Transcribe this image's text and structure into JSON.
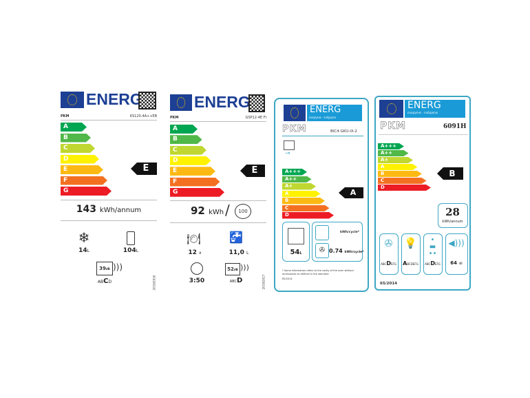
{
  "energy_word": "ENERG",
  "labels": [
    {
      "brand": "PKM",
      "model": "KS120.4A++EB",
      "scale": [
        "A",
        "B",
        "C",
        "D",
        "E",
        "F",
        "G"
      ],
      "rating": "E",
      "consumption": "143",
      "consumption_unit": "kWh/annum",
      "freezer_volume": "14",
      "fridge_volume": "104",
      "volume_unit": "L",
      "noise_db": "39",
      "db_unit": "dB",
      "noise_classes_before": "AB",
      "noise_class": "C",
      "noise_classes_after": "D",
      "icons": [
        "snowflake-icon",
        "fridge-icon",
        "speaker-icon"
      ],
      "side_code": "2019/2016"
    },
    {
      "brand": "PKM",
      "model": "GSP12-4E FI",
      "scale": [
        "A",
        "B",
        "C",
        "D",
        "E",
        "F",
        "G"
      ],
      "rating": "E",
      "consumption": "92",
      "consumption_unit": "kWh",
      "cycles": "100",
      "place_settings": "12",
      "place_unit": "x",
      "water": "11,0",
      "water_unit": "L",
      "duration": "3:50",
      "noise_db": "52",
      "db_unit": "dB",
      "noise_classes_before": "ABC",
      "noise_class": "D",
      "side_code": "2019/2017"
    },
    {
      "brand": "PKM",
      "model": "BIC4 GKU-IX-2",
      "energy_sub": "ενεργεια · ενέργεια",
      "scale": [
        "A+++",
        "A++",
        "A+",
        "A",
        "B",
        "C",
        "D"
      ],
      "rating": "A",
      "volume": "54",
      "volume_unit": "L",
      "conv_unit": "kWh/cycle*",
      "fan_value": "0.74",
      "fan_unit": "kWh/cycle*",
      "footnote": "* Some information refers to the cavity of the oven without accessories as defined in the standard",
      "regulation": "65/2014"
    },
    {
      "brand": "PKM",
      "model": "6091H",
      "energy_sub": "ενεργεια · ενέργεια",
      "scale": [
        "A+++",
        "A++",
        "A+",
        "A",
        "B",
        "C",
        "D"
      ],
      "rating": "B",
      "consumption": "28",
      "consumption_unit": "kWh/annum",
      "fan_class_pre": "ABC",
      "fan_class": "D",
      "fan_class_post": "EFG",
      "light_class": "A",
      "light_class_post": "BCDEFG",
      "grease_class_pre": "ABC",
      "grease_class": "D",
      "grease_class_post": "EFG",
      "noise_db": "64",
      "db_unit": "dB",
      "regulation": "65/2014"
    }
  ],
  "colors": {
    "scale": [
      "#00a651",
      "#50b848",
      "#bfd730",
      "#fff200",
      "#fdb913",
      "#f37021",
      "#ed1c24"
    ],
    "frame": "#3ba6c4",
    "eu_blue": "#1d3f94"
  }
}
